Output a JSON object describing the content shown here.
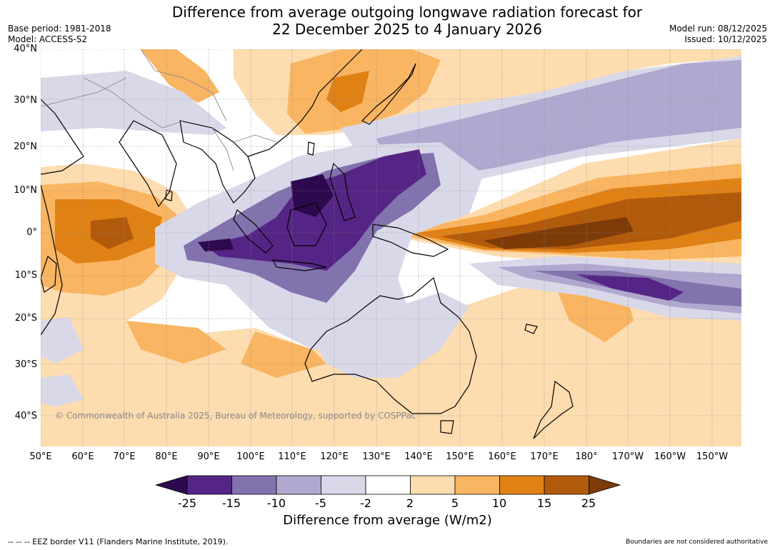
{
  "header": {
    "title_line1": "Difference from average outgoing longwave radiation forecast for",
    "title_line2": "22 December 2025 to 4 January 2026",
    "base_period": "Base period: 1981-2018",
    "model": "Model: ACCESS-S2",
    "model_run": "Model run: 08/12/2025",
    "issued": "Issued: 10/12/2025"
  },
  "map": {
    "lat_labels": [
      "40°N",
      "30°N",
      "20°N",
      "10°N",
      "0°",
      "10°S",
      "20°S",
      "30°S",
      "40°S"
    ],
    "lon_labels": [
      "50°E",
      "60°E",
      "70°E",
      "80°E",
      "90°E",
      "100°E",
      "110°E",
      "120°E",
      "130°E",
      "140°E",
      "150°E",
      "160°E",
      "170°E",
      "180°",
      "170°W",
      "160°W",
      "150°W"
    ],
    "copyright": "© Commonwealth of Australia 2025, Bureau of Meteorology, supported by COSPPac"
  },
  "colorbar": {
    "title": "Difference from average (W/m2)",
    "ticks": [
      "-25",
      "-15",
      "-10",
      "-5",
      "-2",
      "2",
      "5",
      "10",
      "15",
      "25"
    ],
    "colors": {
      "lt_neg25": "#2d0a4e",
      "neg25_neg15": "#552585",
      "neg15_neg10": "#8272ae",
      "neg10_neg5": "#b1a8d0",
      "neg5_neg2": "#d9d8e9",
      "neutral": "#ffffff",
      "pos2_5": "#fddcb0",
      "pos5_10": "#f9b561",
      "pos10_15": "#e08116",
      "pos15_25": "#b25a0b",
      "gt_25": "#7d3b08"
    }
  },
  "footer": {
    "eez_note": "--  --  -- EEZ border V11 (Flanders Marine Institute, 2019).",
    "boundaries_note": "Boundaries are not considered authoritative"
  }
}
